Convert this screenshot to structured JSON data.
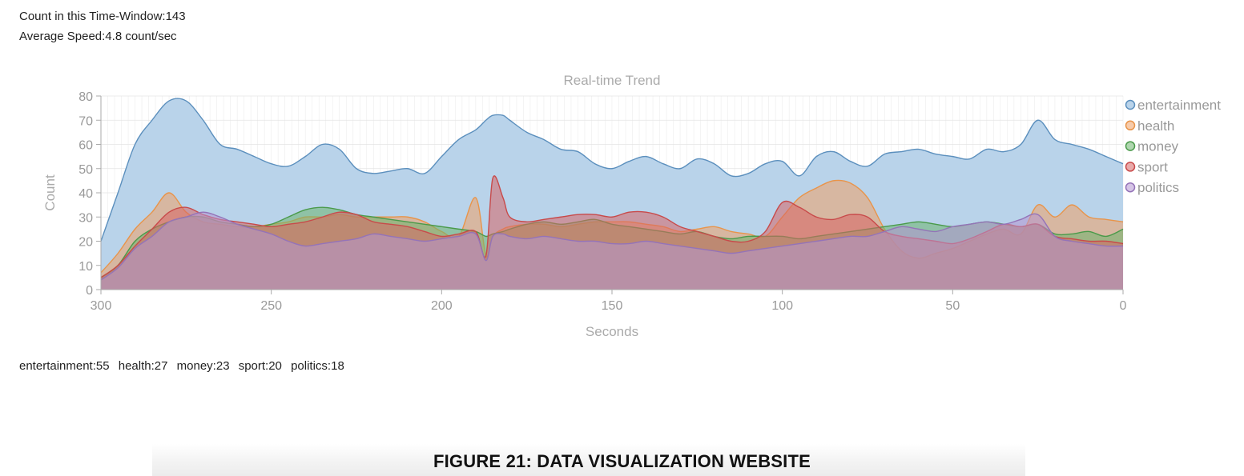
{
  "stats": {
    "count_line": "Count in this Time-Window:143",
    "speed_line": "Average Speed:4.8 count/sec"
  },
  "summary": [
    "entertainment:55",
    "health:27",
    "money:23",
    "sport:20",
    "politics:18"
  ],
  "caption": "FIGURE 21: DATA VISUALIZATION WEBSITE",
  "chart_data": {
    "type": "area",
    "title": "Real-time Trend",
    "xlabel": "Seconds",
    "ylabel": "Count",
    "xlim": [
      300,
      0
    ],
    "ylim": [
      0,
      80
    ],
    "x_ticks": [
      300,
      250,
      200,
      150,
      100,
      50,
      0
    ],
    "y_ticks": [
      0,
      10,
      20,
      30,
      40,
      50,
      60,
      70,
      80
    ],
    "grid": true,
    "legend_position": "right",
    "x": [
      300,
      295,
      290,
      285,
      280,
      275,
      270,
      265,
      260,
      255,
      250,
      245,
      240,
      235,
      230,
      225,
      220,
      215,
      210,
      205,
      200,
      195,
      190,
      187,
      185,
      182,
      180,
      175,
      170,
      165,
      160,
      155,
      150,
      145,
      140,
      135,
      130,
      125,
      120,
      115,
      110,
      105,
      100,
      95,
      90,
      85,
      80,
      75,
      70,
      65,
      60,
      55,
      50,
      45,
      40,
      35,
      30,
      25,
      20,
      15,
      10,
      5,
      0
    ],
    "series": [
      {
        "name": "entertainment",
        "color": "#5b8fbd",
        "fill": "#b9d3ea",
        "values": [
          20,
          40,
          60,
          70,
          78,
          78,
          70,
          60,
          58,
          55,
          52,
          51,
          55,
          60,
          58,
          50,
          48,
          49,
          50,
          48,
          55,
          62,
          66,
          70,
          72,
          72,
          70,
          65,
          62,
          58,
          57,
          52,
          50,
          53,
          55,
          52,
          50,
          54,
          52,
          47,
          48,
          52,
          53,
          47,
          55,
          57,
          53,
          51,
          56,
          57,
          58,
          56,
          55,
          54,
          58,
          57,
          60,
          70,
          62,
          60,
          58,
          55,
          52
        ]
      },
      {
        "name": "health",
        "color": "#e8944a",
        "fill": "rgba(240,160,100,0.55)",
        "values": [
          7,
          15,
          25,
          32,
          40,
          32,
          28,
          27,
          26,
          26,
          27,
          28,
          30,
          30,
          31,
          30,
          30,
          30,
          30,
          28,
          24,
          22,
          38,
          14,
          22,
          25,
          26,
          27,
          27,
          26,
          27,
          28,
          28,
          28,
          27,
          26,
          24,
          25,
          26,
          24,
          23,
          22,
          30,
          38,
          42,
          45,
          44,
          38,
          25,
          16,
          13,
          15,
          17,
          20,
          23,
          25,
          23,
          35,
          30,
          35,
          30,
          29,
          28
        ]
      },
      {
        "name": "money",
        "color": "#4a9a4a",
        "fill": "rgba(110,180,110,0.55)",
        "values": [
          5,
          10,
          20,
          25,
          28,
          30,
          30,
          28,
          27,
          26,
          27,
          30,
          33,
          34,
          33,
          31,
          30,
          29,
          28,
          27,
          26,
          25,
          24,
          22,
          23,
          24,
          25,
          27,
          28,
          27,
          28,
          29,
          27,
          26,
          25,
          24,
          23,
          24,
          22,
          21,
          22,
          22,
          22,
          21,
          22,
          23,
          24,
          25,
          26,
          27,
          28,
          27,
          26,
          27,
          28,
          27,
          26,
          27,
          23,
          23,
          24,
          22,
          25
        ]
      },
      {
        "name": "sport",
        "color": "#c84a4a",
        "fill": "rgba(215,100,100,0.55)",
        "values": [
          5,
          10,
          18,
          25,
          32,
          34,
          31,
          29,
          28,
          27,
          26,
          27,
          28,
          30,
          32,
          31,
          28,
          27,
          26,
          24,
          22,
          23,
          24,
          14,
          46,
          38,
          30,
          28,
          29,
          30,
          31,
          31,
          30,
          32,
          32,
          30,
          26,
          24,
          22,
          20,
          20,
          24,
          36,
          34,
          30,
          29,
          31,
          30,
          24,
          22,
          21,
          20,
          19,
          21,
          24,
          27,
          26,
          27,
          22,
          21,
          20,
          20,
          19
        ]
      },
      {
        "name": "politics",
        "color": "#9473b8",
        "fill": "rgba(180,150,210,0.55)",
        "values": [
          4,
          9,
          17,
          22,
          28,
          30,
          32,
          30,
          27,
          25,
          23,
          20,
          18,
          19,
          20,
          21,
          23,
          22,
          21,
          20,
          21,
          22,
          23,
          12,
          22,
          23,
          22,
          21,
          22,
          21,
          20,
          20,
          19,
          19,
          20,
          19,
          18,
          17,
          16,
          15,
          16,
          17,
          18,
          19,
          20,
          21,
          22,
          22,
          24,
          26,
          25,
          24,
          26,
          27,
          28,
          27,
          29,
          31,
          22,
          20,
          19,
          18,
          18
        ]
      }
    ]
  }
}
